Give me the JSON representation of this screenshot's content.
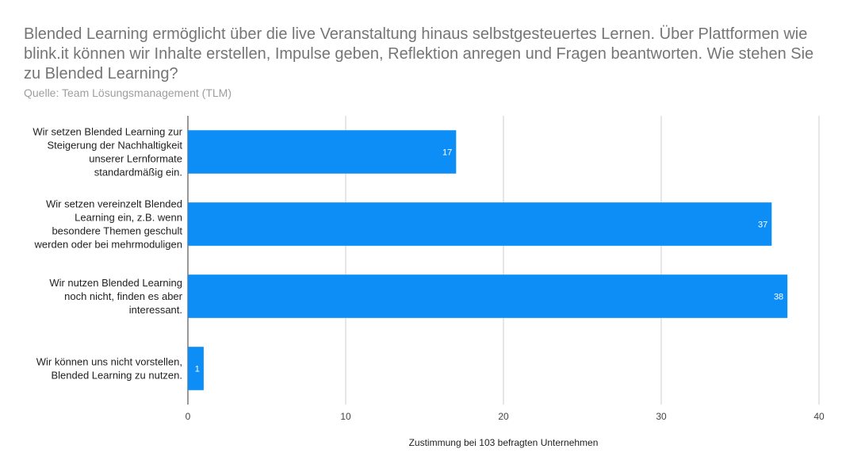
{
  "chart_data": {
    "type": "bar",
    "orientation": "horizontal",
    "title": "Blended Learning ermöglicht über die live Veranstaltung hinaus selbstgesteuertes Lernen. Über Plattformen wie blink.it können wir Inhalte erstellen, Impulse geben, Reflektion anregen und Fragen beantworten. Wie stehen Sie zu Blended Learning?",
    "subtitle": "Quelle: Team Lösungsmanagement (TLM)",
    "categories": [
      [
        "Wir setzen Blended Learning zur",
        "Steigerung der Nachhaltigkeit",
        "unserer Lernformate",
        "standardmäßig ein."
      ],
      [
        "Wir setzen vereinzelt Blended",
        "Learning ein, z.B. wenn",
        "besondere Themen geschult",
        "werden oder bei mehrmoduligen"
      ],
      [
        "Wir nutzen Blended Learning",
        "noch nicht, finden es aber",
        "interessant."
      ],
      [
        "Wir können uns nicht vorstellen,",
        "Blended Learning zu nutzen."
      ]
    ],
    "values": [
      17,
      37,
      38,
      1
    ],
    "data_labels": [
      "17",
      "37",
      "38",
      "1"
    ],
    "xlabel": "Zustimmung bei 103 befragten Unternehmen",
    "ylabel": "",
    "xlim": [
      0,
      40
    ],
    "xticks": [
      0,
      10,
      20,
      30,
      40
    ],
    "grid": true,
    "legend": "none",
    "bar_color": "#0d8ef7"
  }
}
